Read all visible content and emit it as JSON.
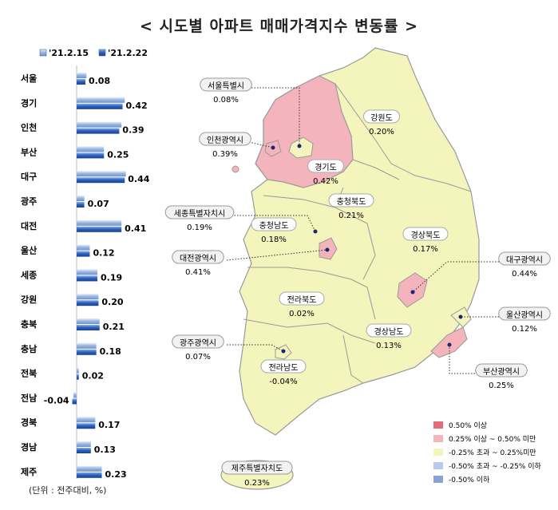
{
  "title": "< 시도별 아파트 매매가격지수 변동률 >",
  "unit_note": "(단위 : 전주대비, %)",
  "chart_data": {
    "type": "bar",
    "orientation": "horizontal",
    "categories": [
      "서울",
      "경기",
      "인천",
      "부산",
      "대구",
      "광주",
      "대전",
      "울산",
      "세종",
      "강원",
      "충북",
      "충남",
      "전북",
      "전남",
      "경북",
      "경남",
      "제주"
    ],
    "series": [
      {
        "name": "'21.2.15",
        "color": "#9bb8e0",
        "values": [
          0.09,
          0.44,
          0.41,
          0.25,
          0.45,
          0.07,
          0.41,
          0.12,
          0.19,
          0.2,
          0.21,
          0.18,
          0.02,
          -0.03,
          0.17,
          0.13,
          0.23
        ]
      },
      {
        "name": "'21.2.22",
        "color": "#2b64c2",
        "values": [
          0.08,
          0.42,
          0.39,
          0.25,
          0.44,
          0.07,
          0.41,
          0.12,
          0.19,
          0.2,
          0.21,
          0.18,
          0.02,
          -0.04,
          0.17,
          0.13,
          0.23
        ]
      }
    ],
    "data_labels": [
      "0.08",
      "0.42",
      "0.39",
      "0.25",
      "0.44",
      "0.07",
      "0.41",
      "0.12",
      "0.19",
      "0.20",
      "0.21",
      "0.18",
      "0.02",
      "-0.04",
      "0.17",
      "0.13",
      "0.23"
    ],
    "xlim": [
      -0.05,
      0.5
    ],
    "legend_position": "top"
  },
  "map": {
    "inner_regions": [
      {
        "name": "강원도",
        "value": "0.20%",
        "band": "mid"
      },
      {
        "name": "경기도",
        "value": "0.42%",
        "band": "high"
      },
      {
        "name": "충청북도",
        "value": "0.21%",
        "band": "mid"
      },
      {
        "name": "충청남도",
        "value": "0.18%",
        "band": "mid"
      },
      {
        "name": "경상북도",
        "value": "0.17%",
        "band": "mid"
      },
      {
        "name": "전라북도",
        "value": "0.02%",
        "band": "mid"
      },
      {
        "name": "경상남도",
        "value": "0.13%",
        "band": "mid"
      },
      {
        "name": "전라남도",
        "value": "-0.04%",
        "band": "mid"
      }
    ],
    "callouts": [
      {
        "name": "서울특별시",
        "value": "0.08%"
      },
      {
        "name": "인천광역시",
        "value": "0.39%"
      },
      {
        "name": "세종특별자치시",
        "value": "0.19%"
      },
      {
        "name": "대전광역시",
        "value": "0.41%"
      },
      {
        "name": "광주광역시",
        "value": "0.07%"
      },
      {
        "name": "대구광역시",
        "value": "0.44%"
      },
      {
        "name": "울산광역시",
        "value": "0.12%"
      },
      {
        "name": "부산광역시",
        "value": "0.25%"
      }
    ],
    "jeju": {
      "name": "제주특별자치도",
      "value": "0.23%",
      "band": "mid"
    },
    "legend": [
      {
        "label": "0.50% 이상",
        "color": "#e36d7c"
      },
      {
        "label": "0.25% 이상 ~ 0.50% 미만",
        "color": "#f4b4bb"
      },
      {
        "label": "-0.25% 초과 ~ 0.25%미만",
        "color": "#f4f4bd"
      },
      {
        "label": "-0.50% 초과 ~ -0.25% 이하",
        "color": "#b9c9ec"
      },
      {
        "label": "-0.50% 이하",
        "color": "#8aa2d6"
      }
    ],
    "colors": {
      "high": "#f4b4bb",
      "mid": "#f4f4bd",
      "border": "#9a9a9a",
      "dot": "#1a237e"
    }
  }
}
